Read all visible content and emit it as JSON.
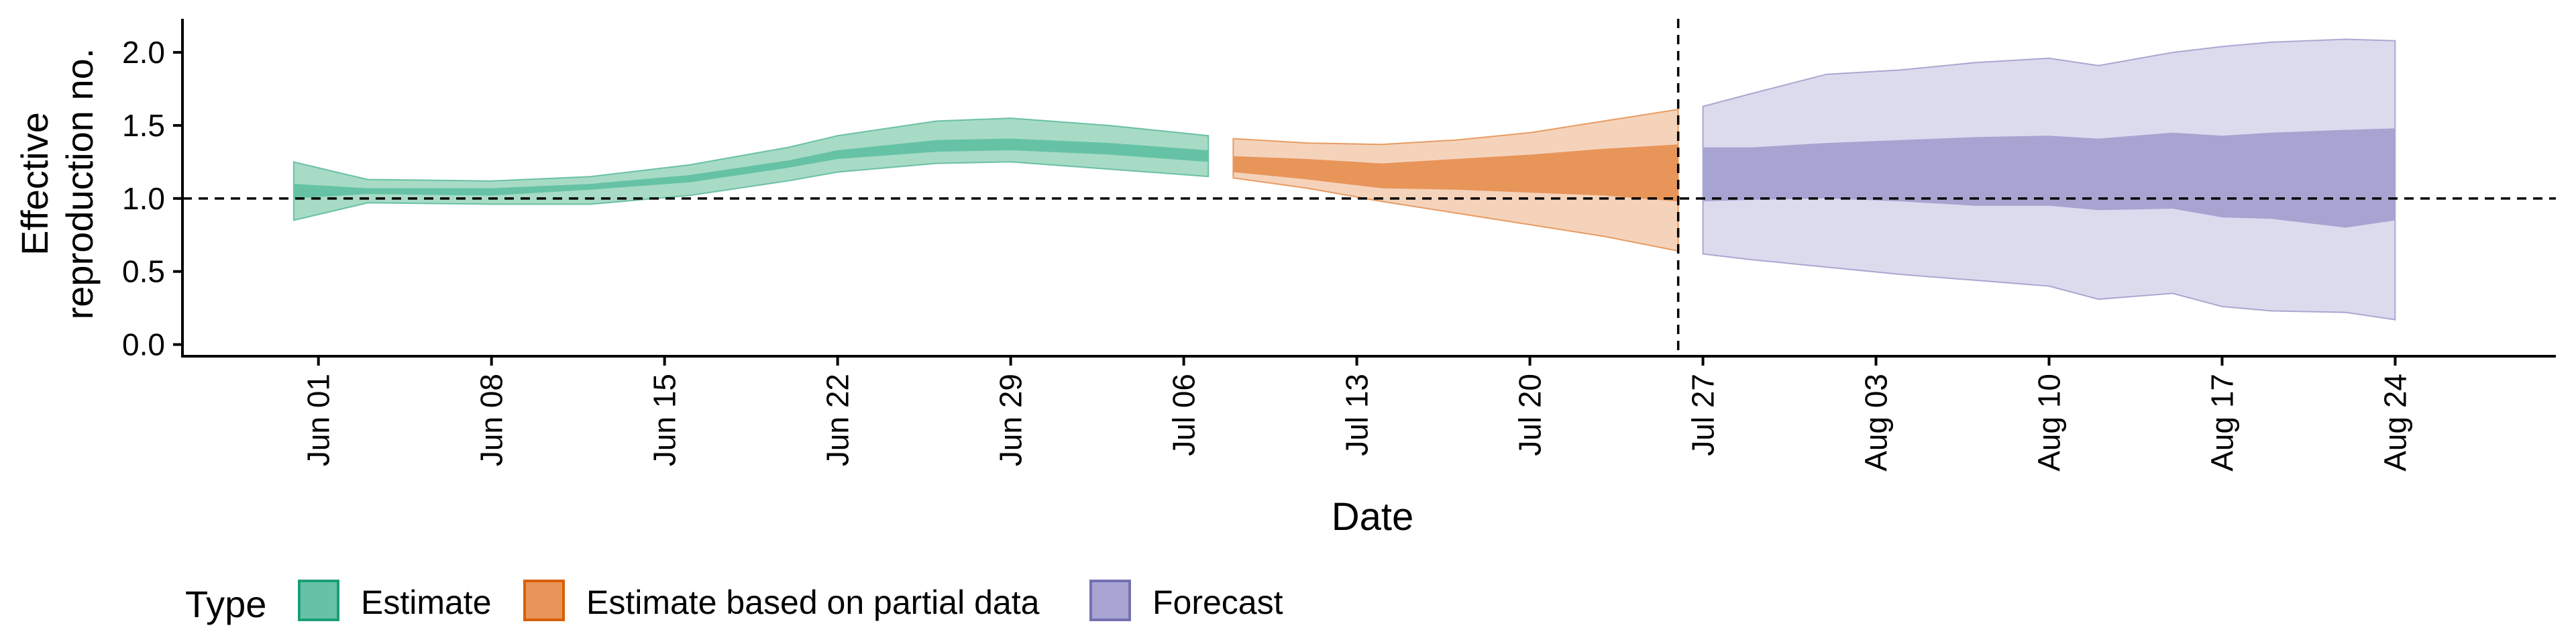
{
  "chart_data": {
    "type": "area",
    "title": "",
    "xlabel": "Date",
    "ylabel": "Effective reproduction no.",
    "ylabel_lines": [
      "Effective",
      "reproduction no."
    ],
    "y_ticks": [
      "0.0",
      "0.5",
      "1.0",
      "1.5",
      "2.0"
    ],
    "ylim": [
      -0.08,
      2.23
    ],
    "x_domain_start": "May 27",
    "x_domain_end": "Aug 30",
    "x_ticks": [
      {
        "label": "Jun 01",
        "day": 5
      },
      {
        "label": "Jun 08",
        "day": 12
      },
      {
        "label": "Jun 15",
        "day": 19
      },
      {
        "label": "Jun 22",
        "day": 26
      },
      {
        "label": "Jun 29",
        "day": 33
      },
      {
        "label": "Jul 06",
        "day": 40
      },
      {
        "label": "Jul 13",
        "day": 47
      },
      {
        "label": "Jul 20",
        "day": 54
      },
      {
        "label": "Jul 27",
        "day": 61
      },
      {
        "label": "Aug 03",
        "day": 68
      },
      {
        "label": "Aug 10",
        "day": 75
      },
      {
        "label": "Aug 17",
        "day": 82
      },
      {
        "label": "Aug 24",
        "day": 89
      }
    ],
    "xlim_days": [
      -0.5,
      95.5
    ],
    "reference_hline": 1.0,
    "reference_vline_day": 60,
    "legend": {
      "title": "Type",
      "position": "bottom-left",
      "entries": [
        {
          "name": "Estimate",
          "fill": "#66c2a5",
          "stroke": "#1b9e77"
        },
        {
          "name": "Estimate based on partial data",
          "fill": "#e8955a",
          "stroke": "#d95f02"
        },
        {
          "name": "Forecast",
          "fill": "#a7a4d2",
          "stroke": "#7570b3"
        }
      ]
    },
    "series": [
      {
        "name": "Estimate",
        "inner_color": "#66c2a5",
        "outer_color": "#a7dbc6",
        "outer_stroke": "#1b9e77",
        "days": [
          4,
          7,
          12,
          16,
          20,
          24,
          26,
          30,
          33,
          37,
          41
        ],
        "outer_lower": [
          0.85,
          0.97,
          0.96,
          0.96,
          1.02,
          1.12,
          1.18,
          1.24,
          1.25,
          1.2,
          1.15
        ],
        "outer_upper": [
          1.25,
          1.13,
          1.12,
          1.15,
          1.23,
          1.35,
          1.43,
          1.53,
          1.55,
          1.5,
          1.43
        ],
        "inner_lower": [
          1.0,
          1.03,
          1.02,
          1.06,
          1.11,
          1.21,
          1.27,
          1.32,
          1.33,
          1.3,
          1.25
        ],
        "inner_upper": [
          1.1,
          1.07,
          1.07,
          1.1,
          1.16,
          1.26,
          1.33,
          1.4,
          1.41,
          1.38,
          1.33
        ]
      },
      {
        "name": "Estimate based on partial data",
        "inner_color": "#e8955a",
        "outer_color": "#f5d3bb",
        "outer_stroke": "#d95f02",
        "days": [
          42,
          45,
          48,
          51,
          54,
          57,
          60
        ],
        "outer_lower": [
          1.14,
          1.07,
          0.98,
          0.9,
          0.82,
          0.74,
          0.64
        ],
        "outer_upper": [
          1.41,
          1.38,
          1.37,
          1.4,
          1.45,
          1.53,
          1.61
        ],
        "inner_lower": [
          1.18,
          1.13,
          1.07,
          1.06,
          1.04,
          1.02,
          0.98
        ],
        "inner_upper": [
          1.29,
          1.27,
          1.24,
          1.27,
          1.3,
          1.34,
          1.37
        ]
      },
      {
        "name": "Forecast",
        "inner_color": "#a7a4d2",
        "outer_color": "#dcdbee",
        "outer_stroke": "#7570b3",
        "days": [
          61,
          63,
          66,
          69,
          72,
          75,
          77,
          80,
          82,
          84,
          87,
          89
        ],
        "outer_lower": [
          0.62,
          0.58,
          0.53,
          0.48,
          0.44,
          0.4,
          0.31,
          0.35,
          0.26,
          0.23,
          0.22,
          0.17
        ],
        "outer_upper": [
          1.63,
          1.72,
          1.85,
          1.88,
          1.93,
          1.96,
          1.91,
          2.0,
          2.04,
          2.07,
          2.09,
          2.08
        ],
        "inner_lower": [
          0.98,
          0.99,
          1.0,
          0.98,
          0.95,
          0.95,
          0.92,
          0.93,
          0.87,
          0.86,
          0.8,
          0.85
        ],
        "inner_upper": [
          1.35,
          1.35,
          1.38,
          1.4,
          1.42,
          1.43,
          1.41,
          1.45,
          1.43,
          1.45,
          1.47,
          1.48
        ]
      }
    ]
  }
}
